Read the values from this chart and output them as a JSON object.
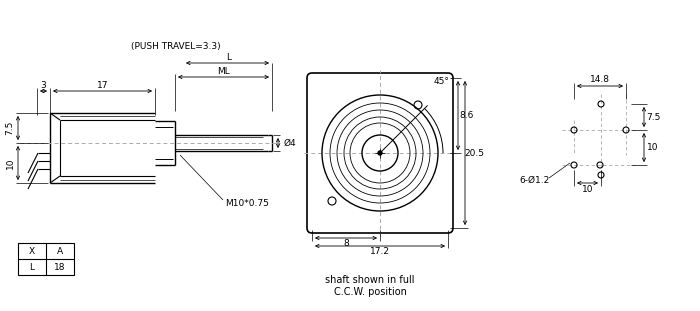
{
  "bg_color": "#ffffff",
  "line_color": "#000000",
  "dim_color": "#000000",
  "centerline_color": "#aaaaaa",
  "note_push_travel": "(PUSH TRAVEL=3.3)",
  "note_shaft": "shaft shown in full\nC.C.W. position",
  "note_m10": "M10*0.75",
  "note_dia4": "Ø4",
  "note_6holes": "6-Ø1.2",
  "note_45deg": "45°",
  "dim_3": "3",
  "dim_17": "17",
  "dim_ML": "ML",
  "dim_L": "L",
  "dim_7_5_left": "7.5",
  "dim_10_left": "10",
  "dim_8_6": "8.6",
  "dim_20_5": "20.5",
  "dim_8": "8",
  "dim_17_2": "17.2",
  "dim_14_8": "14.8",
  "dim_7_5_right": "7.5",
  "dim_10_right_v": "10",
  "dim_10_right_h": "10",
  "table_X": "X",
  "table_A": "A",
  "table_L": "L",
  "table_18": "18"
}
